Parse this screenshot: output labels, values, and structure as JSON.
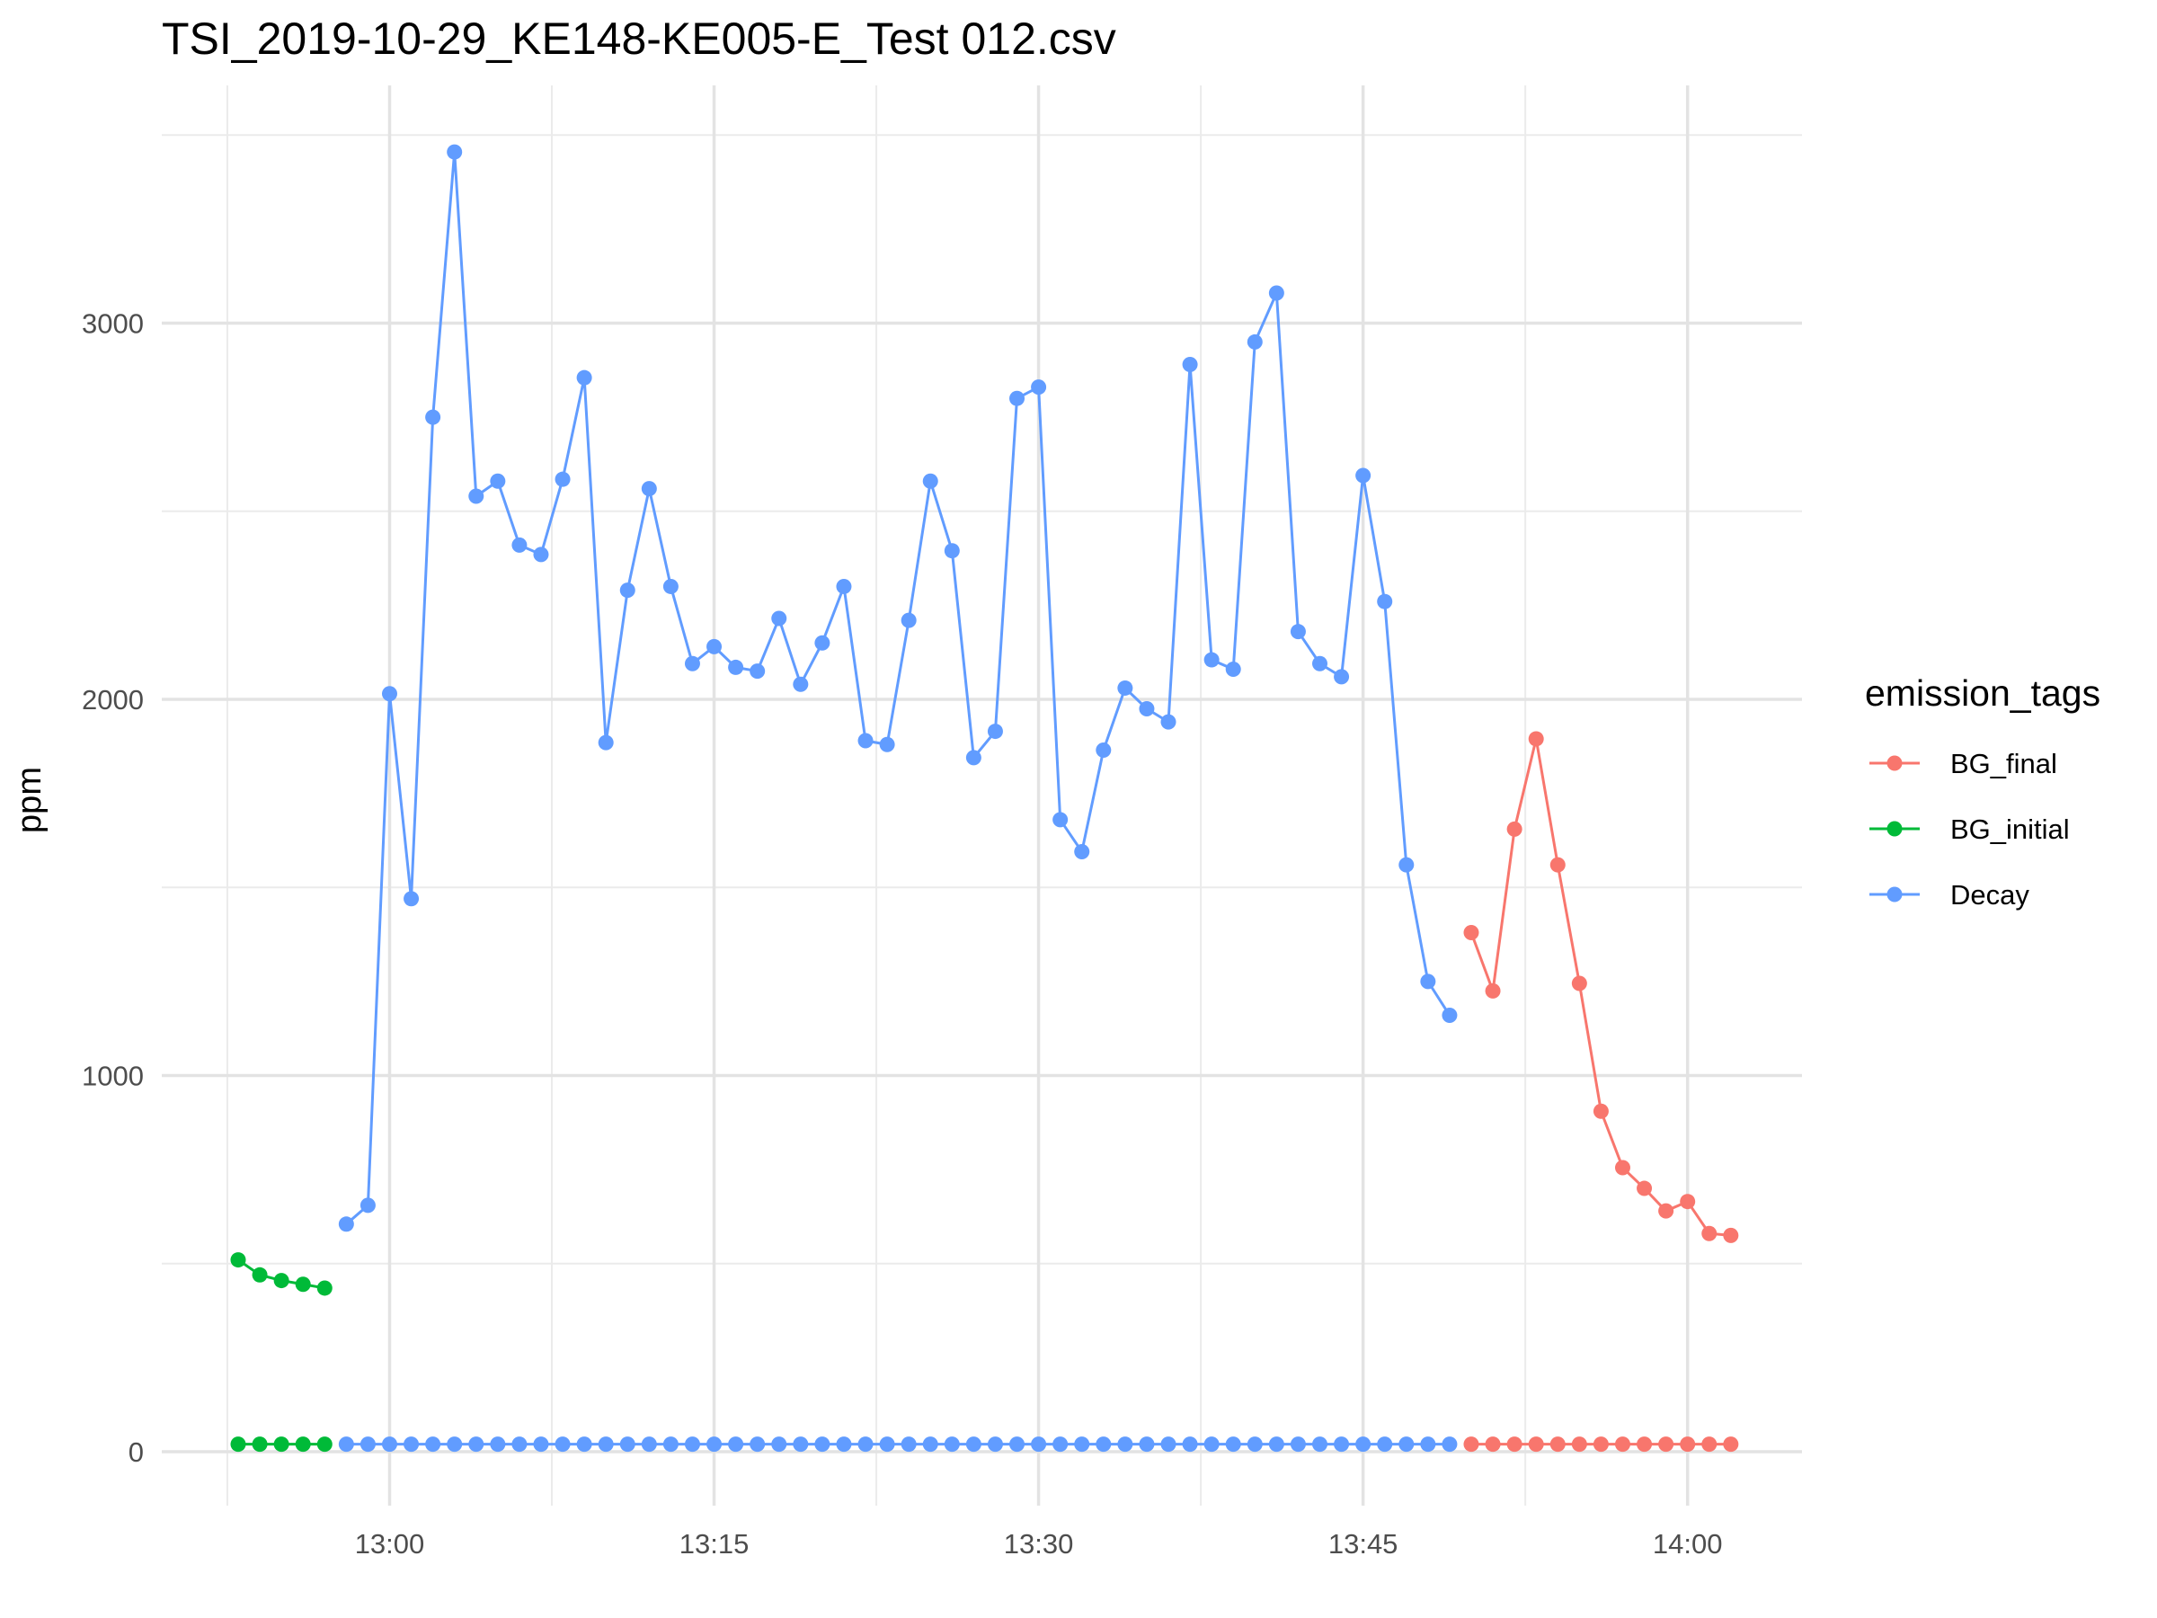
{
  "chart_data": {
    "type": "line",
    "title": "TSI_2019-10-29_KE148-KE005-E_Test 012.csv",
    "xlabel": "",
    "ylabel": "ppm",
    "x_is_time": true,
    "xlim": [
      "12:53",
      "14:03"
    ],
    "ylim": [
      -120,
      3500
    ],
    "y_ticks": [
      0,
      1000,
      2000,
      3000
    ],
    "x_ticks": [
      "13:00",
      "13:15",
      "13:30",
      "13:45",
      "14:00"
    ],
    "grid": true,
    "legend": {
      "title": "emission_tags",
      "position": "right"
    },
    "series": [
      {
        "name": "BG_final",
        "color": "#F8766D",
        "segments": [
          {
            "x": [
              "13:50",
              "13:51",
              "13:52",
              "13:53",
              "13:54",
              "13:55",
              "13:56",
              "13:57",
              "13:58",
              "13:59",
              "14:00",
              "14:01",
              "14:02"
            ],
            "y": [
              1380,
              1225,
              1655,
              1895,
              1560,
              1245,
              905,
              755,
              700,
              640,
              665,
              580,
              575
            ]
          },
          {
            "x": [
              "13:50",
              "13:51",
              "13:52",
              "13:53",
              "13:54",
              "13:55",
              "13:56",
              "13:57",
              "13:58",
              "13:59",
              "14:00",
              "14:01",
              "14:02"
            ],
            "y": [
              20,
              20,
              20,
              20,
              20,
              20,
              20,
              20,
              20,
              20,
              20,
              20,
              20
            ]
          }
        ]
      },
      {
        "name": "BG_initial",
        "color": "#00BA38",
        "segments": [
          {
            "x": [
              "12:53",
              "12:54",
              "12:55",
              "12:56",
              "12:57"
            ],
            "y": [
              510,
              470,
              455,
              445,
              435
            ]
          },
          {
            "x": [
              "12:53",
              "12:54",
              "12:55",
              "12:56",
              "12:57"
            ],
            "y": [
              20,
              20,
              20,
              20,
              20
            ]
          }
        ]
      },
      {
        "name": "Decay",
        "color": "#619CFF",
        "segments": [
          {
            "x": [
              "12:58",
              "12:59",
              "13:00",
              "13:01",
              "13:02",
              "13:03",
              "13:04",
              "13:05",
              "13:06",
              "13:07",
              "13:08",
              "13:09",
              "13:10",
              "13:11",
              "13:12",
              "13:13",
              "13:14",
              "13:15",
              "13:16",
              "13:17",
              "13:18",
              "13:19",
              "13:20",
              "13:21",
              "13:22",
              "13:23",
              "13:24",
              "13:25",
              "13:26",
              "13:27",
              "13:28",
              "13:29",
              "13:30",
              "13:31",
              "13:32",
              "13:33",
              "13:34",
              "13:35",
              "13:36",
              "13:37",
              "13:38",
              "13:39",
              "13:40",
              "13:41",
              "13:42",
              "13:43",
              "13:44",
              "13:45",
              "13:46",
              "13:47",
              "13:48",
              "13:49"
            ],
            "y": [
              605,
              655,
              2015,
              1470,
              2750,
              3455,
              2540,
              2580,
              2410,
              2385,
              2585,
              2855,
              1885,
              2290,
              2560,
              2300,
              2095,
              2140,
              2085,
              2075,
              2215,
              2040,
              2150,
              2300,
              1890,
              1880,
              2210,
              2580,
              2395,
              1845,
              1915,
              2800,
              2830,
              1680,
              1595,
              1865,
              2030,
              1975,
              1940,
              2890,
              2105,
              2080,
              2950,
              3080,
              2180,
              2095,
              2060,
              2595,
              2260,
              1560,
              1250,
              1160
            ]
          },
          {
            "x": [
              "12:58",
              "12:59",
              "13:00",
              "13:01",
              "13:02",
              "13:03",
              "13:04",
              "13:05",
              "13:06",
              "13:07",
              "13:08",
              "13:09",
              "13:10",
              "13:11",
              "13:12",
              "13:13",
              "13:14",
              "13:15",
              "13:16",
              "13:17",
              "13:18",
              "13:19",
              "13:20",
              "13:21",
              "13:22",
              "13:23",
              "13:24",
              "13:25",
              "13:26",
              "13:27",
              "13:28",
              "13:29",
              "13:30",
              "13:31",
              "13:32",
              "13:33",
              "13:34",
              "13:35",
              "13:36",
              "13:37",
              "13:38",
              "13:39",
              "13:40",
              "13:41",
              "13:42",
              "13:43",
              "13:44",
              "13:45",
              "13:46",
              "13:47",
              "13:48",
              "13:49"
            ],
            "y": [
              20,
              20,
              20,
              20,
              20,
              20,
              20,
              20,
              20,
              20,
              20,
              20,
              20,
              20,
              20,
              20,
              20,
              20,
              20,
              20,
              20,
              20,
              20,
              20,
              20,
              20,
              20,
              20,
              20,
              20,
              20,
              20,
              20,
              20,
              20,
              20,
              20,
              20,
              20,
              20,
              20,
              20,
              20,
              20,
              20,
              20,
              20,
              20,
              20,
              20,
              20,
              20
            ]
          }
        ]
      }
    ]
  }
}
